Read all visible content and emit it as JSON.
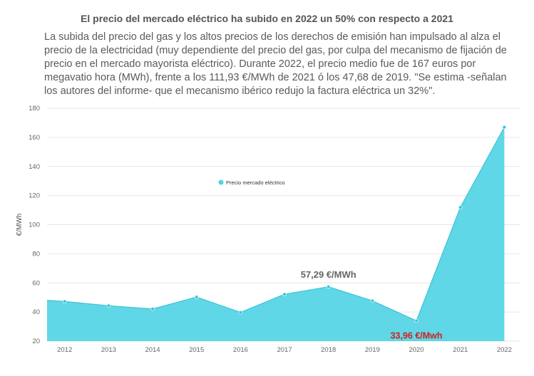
{
  "chart_data": {
    "type": "area",
    "title": "El precio del mercado eléctrico ha subido en 2022 un 50% con respecto a 2021",
    "subtitle": "La subida del precio del gas y los altos precios de los derechos de emisión han impulsado al alza el precio de la electricidad (muy dependiente del precio del gas, por culpa del mecanismo de fijación de precio en el mercado mayorista eléctrico). Durante 2022, el precio medio fue de 167 euros por megavatio hora (MWh), frente a los 111,93 €/MWh de 2021 ó los 47,68 de 2019. \"Se estima -señalan los autores del informe- que el mecanismo ibérico redujo la factura eléctrica un 32%\".",
    "xlabel": "",
    "ylabel": "€/MWh",
    "ylim": [
      20,
      180
    ],
    "yticks": [
      20,
      40,
      60,
      80,
      100,
      120,
      140,
      160,
      180
    ],
    "grid": true,
    "legend_position": "upper-left-inside",
    "categories": [
      "2012",
      "2013",
      "2014",
      "2015",
      "2016",
      "2017",
      "2018",
      "2019",
      "2020",
      "2021",
      "2022"
    ],
    "x": [
      2011.6,
      2012,
      2013,
      2014,
      2015,
      2016,
      2017,
      2018,
      2019,
      2020,
      2021,
      2022
    ],
    "series": [
      {
        "name": "Precio mercado eléctrico",
        "color": "#4fd3e3",
        "values": [
          48.0,
          47.2,
          44.3,
          42.1,
          50.3,
          39.7,
          52.2,
          57.29,
          47.68,
          33.96,
          111.93,
          167.0
        ]
      }
    ],
    "annotations": [
      {
        "x": 2018,
        "y": 57.29,
        "text": "57,29 €/MWh",
        "color": "#666666",
        "position": "above"
      },
      {
        "x": 2020,
        "y": 33.96,
        "text": "33,96 €/Mwh",
        "color": "#cc2222",
        "position": "below"
      }
    ]
  }
}
